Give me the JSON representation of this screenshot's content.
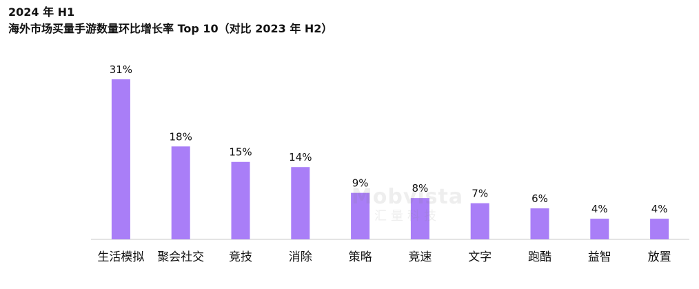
{
  "header": {
    "line1": "2024 年 H1",
    "line2": "海外市场买量手游数量环比增长率 Top 10（对比 2023 年 H2）"
  },
  "watermark": {
    "brand": "Mobvista",
    "subtitle": "汇量科技"
  },
  "colors": {
    "bar": "#a97ef7",
    "axis": "#c8c8c8",
    "text": "#111111"
  },
  "chart_data": {
    "type": "bar",
    "title": "海外市场买量手游数量环比增长率 Top 10（对比 2023 年 H2）",
    "categories": [
      "生活模拟",
      "聚会社交",
      "竞技",
      "消除",
      "策略",
      "竞速",
      "文字",
      "跑酷",
      "益智",
      "放置"
    ],
    "values": [
      31,
      18,
      15,
      14,
      9,
      8,
      7,
      6,
      4,
      4
    ],
    "value_labels": [
      "31%",
      "18%",
      "15%",
      "14%",
      "9%",
      "8%",
      "7%",
      "6%",
      "4%",
      "4%"
    ],
    "ylim": [
      0,
      31
    ],
    "grid": false,
    "legend": "none"
  }
}
